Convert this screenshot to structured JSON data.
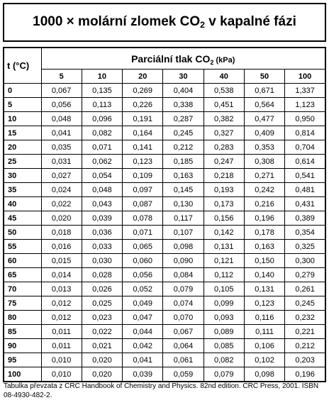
{
  "title": {
    "parts": [
      "1000 × molární zlomek CO",
      "2",
      " v kapalné fázi"
    ]
  },
  "table": {
    "corner": "t (°C)",
    "group_header": {
      "parts": [
        "Parciální tlak CO",
        "2",
        " (kPa)"
      ]
    },
    "columns": [
      "5",
      "10",
      "20",
      "30",
      "40",
      "50",
      "100"
    ],
    "rows": [
      {
        "t": "0",
        "values": [
          "0,067",
          "0,135",
          "0,269",
          "0,404",
          "0,538",
          "0,671",
          "1,337"
        ]
      },
      {
        "t": "5",
        "values": [
          "0,056",
          "0,113",
          "0,226",
          "0,338",
          "0,451",
          "0,564",
          "1,123"
        ]
      },
      {
        "t": "10",
        "values": [
          "0,048",
          "0,096",
          "0,191",
          "0,287",
          "0,382",
          "0,477",
          "0,950"
        ]
      },
      {
        "t": "15",
        "values": [
          "0,041",
          "0,082",
          "0,164",
          "0,245",
          "0,327",
          "0,409",
          "0,814"
        ]
      },
      {
        "t": "20",
        "values": [
          "0,035",
          "0,071",
          "0,141",
          "0,212",
          "0,283",
          "0,353",
          "0,704"
        ]
      },
      {
        "t": "25",
        "values": [
          "0,031",
          "0,062",
          "0,123",
          "0,185",
          "0,247",
          "0,308",
          "0,614"
        ]
      },
      {
        "t": "30",
        "values": [
          "0,027",
          "0,054",
          "0,109",
          "0,163",
          "0,218",
          "0,271",
          "0,541"
        ]
      },
      {
        "t": "35",
        "values": [
          "0,024",
          "0,048",
          "0,097",
          "0,145",
          "0,193",
          "0,242",
          "0,481"
        ]
      },
      {
        "t": "40",
        "values": [
          "0,022",
          "0,043",
          "0,087",
          "0,130",
          "0,173",
          "0,216",
          "0,431"
        ]
      },
      {
        "t": "45",
        "values": [
          "0,020",
          "0,039",
          "0,078",
          "0,117",
          "0,156",
          "0,196",
          "0,389"
        ]
      },
      {
        "t": "50",
        "values": [
          "0,018",
          "0,036",
          "0,071",
          "0,107",
          "0,142",
          "0,178",
          "0,354"
        ]
      },
      {
        "t": "55",
        "values": [
          "0,016",
          "0,033",
          "0,065",
          "0,098",
          "0,131",
          "0,163",
          "0,325"
        ]
      },
      {
        "t": "60",
        "values": [
          "0,015",
          "0,030",
          "0,060",
          "0,090",
          "0,121",
          "0,150",
          "0,300"
        ]
      },
      {
        "t": "65",
        "values": [
          "0,014",
          "0,028",
          "0,056",
          "0,084",
          "0,112",
          "0,140",
          "0,279"
        ]
      },
      {
        "t": "70",
        "values": [
          "0,013",
          "0,026",
          "0,052",
          "0,079",
          "0,105",
          "0,131",
          "0,261"
        ]
      },
      {
        "t": "75",
        "values": [
          "0,012",
          "0,025",
          "0,049",
          "0,074",
          "0,099",
          "0,123",
          "0,245"
        ]
      },
      {
        "t": "80",
        "values": [
          "0,012",
          "0,023",
          "0,047",
          "0,070",
          "0,093",
          "0,116",
          "0,232"
        ]
      },
      {
        "t": "85",
        "values": [
          "0,011",
          "0,022",
          "0,044",
          "0,067",
          "0,089",
          "0,111",
          "0,221"
        ]
      },
      {
        "t": "90",
        "values": [
          "0,011",
          "0,021",
          "0,042",
          "0,064",
          "0,085",
          "0,106",
          "0,212"
        ]
      },
      {
        "t": "95",
        "values": [
          "0,010",
          "0,020",
          "0,041",
          "0,061",
          "0,082",
          "0,102",
          "0,203"
        ]
      },
      {
        "t": "100",
        "values": [
          "0,010",
          "0,020",
          "0,039",
          "0,059",
          "0,079",
          "0,098",
          "0,196"
        ]
      }
    ]
  },
  "footer": "Tabulka převzata z CRC Handbook of Chemistry and Physics. 82nd edition. CRC Press, 2001. ISBN 08-4930-482-2."
}
